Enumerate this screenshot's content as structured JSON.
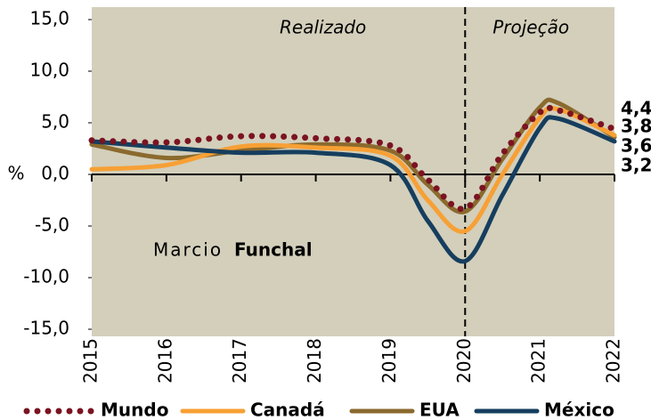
{
  "chart_data": {
    "type": "line",
    "ylabel": "%",
    "x": [
      2015,
      2016,
      2017,
      2018,
      2019,
      2019.5,
      2020,
      2020.5,
      2021,
      2021.25,
      2022
    ],
    "xlim": [
      2015,
      2022
    ],
    "xticks": [
      2015,
      2016,
      2017,
      2018,
      2019,
      2020,
      2021,
      2022
    ],
    "ylim": [
      -15,
      15
    ],
    "yticks": [
      {
        "value": -15,
        "label": "-15,0"
      },
      {
        "value": -10,
        "label": "-10,0"
      },
      {
        "value": -5,
        "label": "-5,0"
      },
      {
        "value": 0,
        "label": "0,0"
      },
      {
        "value": 5,
        "label": "5,0"
      },
      {
        "value": 10,
        "label": "10,0"
      },
      {
        "value": 15,
        "label": "15,0"
      }
    ],
    "background": "#d3cfbb",
    "vline": 2020,
    "annotations": [
      {
        "text": "Realizado",
        "x": [
          2015,
          2020
        ]
      },
      {
        "text": "Projeção",
        "x": [
          2020,
          2022
        ]
      }
    ],
    "watermark": [
      "Marcio",
      "Funchal"
    ],
    "series": [
      {
        "name": "Mundo",
        "color": "#7b1322",
        "style": "dotted",
        "values": [
          3.3,
          3.1,
          3.7,
          3.5,
          2.8,
          -0.5,
          -3.3,
          2.0,
          6.0,
          6.2,
          4.4
        ],
        "value_labels": [
          null,
          null,
          null,
          null,
          null,
          null,
          null,
          null,
          null,
          null,
          "4,4"
        ]
      },
      {
        "name": "Canadá",
        "color": "#f7a035",
        "style": "solid",
        "values": [
          0.5,
          0.9,
          2.7,
          2.6,
          1.8,
          -2.5,
          -5.5,
          0.0,
          5.5,
          6.3,
          3.8
        ],
        "value_labels": [
          null,
          null,
          null,
          null,
          null,
          null,
          null,
          null,
          null,
          null,
          "3,8"
        ]
      },
      {
        "name": "EUA",
        "color": "#8b6a2e",
        "style": "solid",
        "values": [
          2.9,
          1.6,
          2.3,
          2.9,
          2.3,
          -1.0,
          -3.6,
          1.5,
          6.5,
          6.9,
          3.6
        ],
        "value_labels": [
          null,
          null,
          null,
          null,
          null,
          null,
          null,
          null,
          null,
          null,
          "3,6"
        ]
      },
      {
        "name": "México",
        "color": "#163e5e",
        "style": "solid",
        "values": [
          3.2,
          2.6,
          2.1,
          2.1,
          0.9,
          -4.5,
          -8.4,
          -2.0,
          4.5,
          5.4,
          3.2
        ],
        "value_labels": [
          null,
          null,
          null,
          null,
          null,
          null,
          null,
          null,
          null,
          null,
          "3,2"
        ]
      }
    ]
  }
}
